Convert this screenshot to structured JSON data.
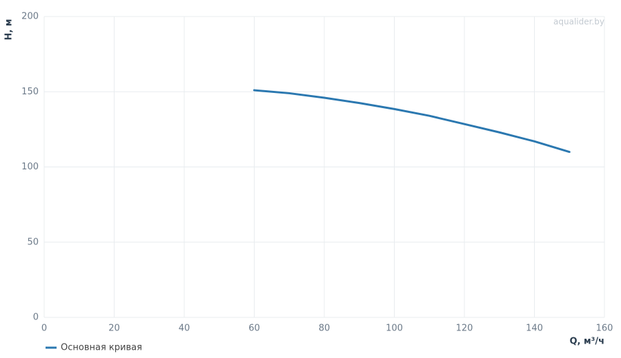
{
  "chart_data": {
    "type": "line",
    "watermark": "aqualider.by",
    "x_label": "Q, м³/ч",
    "y_label": "H, м",
    "x": [
      60,
      70,
      80,
      90,
      100,
      110,
      120,
      130,
      140,
      150
    ],
    "series": [
      {
        "name": "Основная кривая",
        "color": "#2b78b0",
        "values": [
          151,
          149,
          146,
          142.5,
          138.5,
          134,
          128.5,
          123,
          117,
          110
        ]
      }
    ],
    "xlim": [
      0,
      160
    ],
    "xticks": [
      0,
      20,
      40,
      60,
      80,
      100,
      120,
      140,
      160
    ],
    "ylim": [
      0,
      200
    ],
    "yticks": [
      0,
      50,
      100,
      150,
      200
    ],
    "grid": true,
    "legend": "bottom-left"
  }
}
